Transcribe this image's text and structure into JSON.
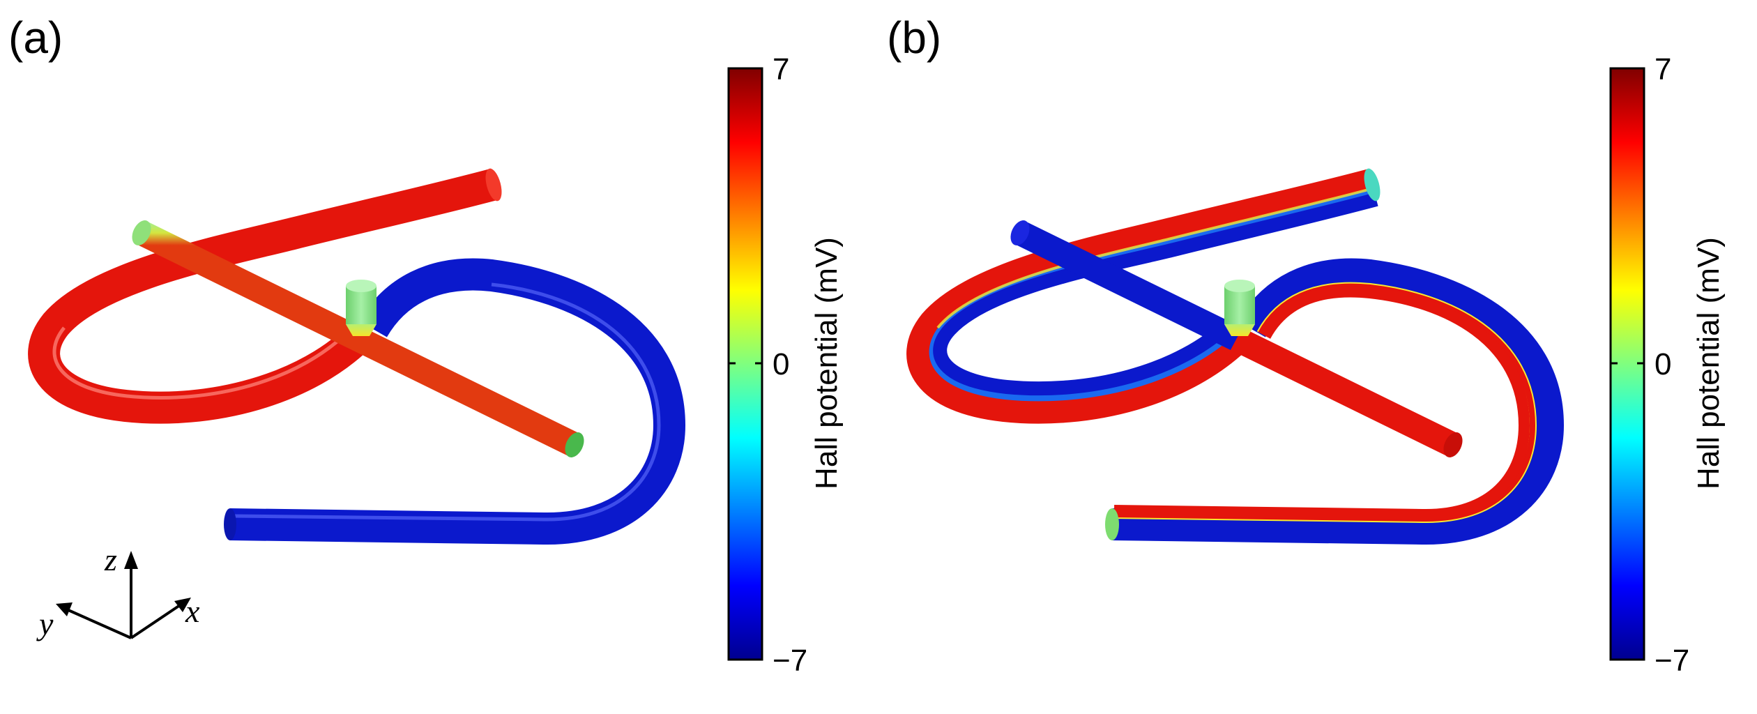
{
  "panels": [
    {
      "label": "(a)",
      "colorbar": {
        "title": "Hall potential (mV)",
        "max": "7",
        "zero": "0",
        "min": "−7"
      },
      "axes": {
        "z": "z",
        "y": "y",
        "x": "x"
      }
    },
    {
      "label": "(b)",
      "colorbar": {
        "title": "Hall potential (mV)",
        "max": "7",
        "zero": "0",
        "min": "−7"
      }
    }
  ],
  "colors": {
    "red": "#e4150c",
    "blue": "#0b19cc",
    "green": "#7ede7e",
    "yellow": "#f4f020",
    "cyan": "#22d0e0"
  }
}
